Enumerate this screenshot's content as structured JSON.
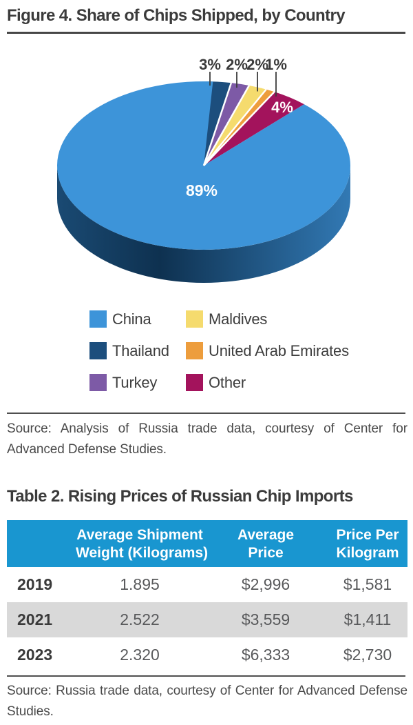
{
  "chart_data": [
    {
      "type": "pie",
      "title": "Figure 4. Share of Chips Shipped, by Country",
      "unit": "percent",
      "slices": [
        {
          "label": "Thailand",
          "value": 3,
          "color": "#1C4E7D",
          "callout": true
        },
        {
          "label": "Turkey",
          "value": 2,
          "color": "#7D5AA6",
          "callout": true
        },
        {
          "label": "Maldives",
          "value": 2,
          "color": "#F5DB6E",
          "callout": true
        },
        {
          "label": "United Arab Emirates",
          "value": 1,
          "color": "#ED9D3D",
          "callout": true
        },
        {
          "label": "Other",
          "value": 4,
          "color": "#A3135C",
          "inside": true
        },
        {
          "label": "China",
          "value": 89,
          "color": "#3D94D9",
          "inside": true
        }
      ],
      "legend": [
        {
          "label": "China",
          "color": "#3D94D9"
        },
        {
          "label": "Thailand",
          "color": "#1C4E7D"
        },
        {
          "label": "Turkey",
          "color": "#7D5AA6"
        },
        {
          "label": "Maldives",
          "color": "#F5DB6E"
        },
        {
          "label": "United Arab Emirates",
          "color": "#ED9D3D"
        },
        {
          "label": "Other",
          "color": "#A3135C"
        }
      ],
      "depth_colors": [
        "#1A4A73",
        "#0E3150",
        "#3279B4"
      ],
      "source": "Source: Analysis of Russia trade data, courtesy of Center for Advanced Defense Studies."
    },
    {
      "type": "table",
      "title": "Table 2. Rising Prices of Russian Chip Imports",
      "columns": [
        "",
        "Average Shipment\nWeight (Kilograms)",
        "Average\nPrice",
        "Price Per\nKilogram"
      ],
      "rows": [
        {
          "year": "2019",
          "cells": [
            "1.895",
            "$2,996",
            "$1,581"
          ]
        },
        {
          "year": "2021",
          "cells": [
            "2.522",
            "$3,559",
            "$1,411"
          ]
        },
        {
          "year": "2023",
          "cells": [
            "2.320",
            "$6,333",
            "$2,730"
          ]
        }
      ],
      "header_bg": "#1996D0",
      "stripe_bg": "#D9D9D9",
      "source": "Source: Russia trade data, courtesy of Center for Advanced Defense Studies."
    }
  ]
}
